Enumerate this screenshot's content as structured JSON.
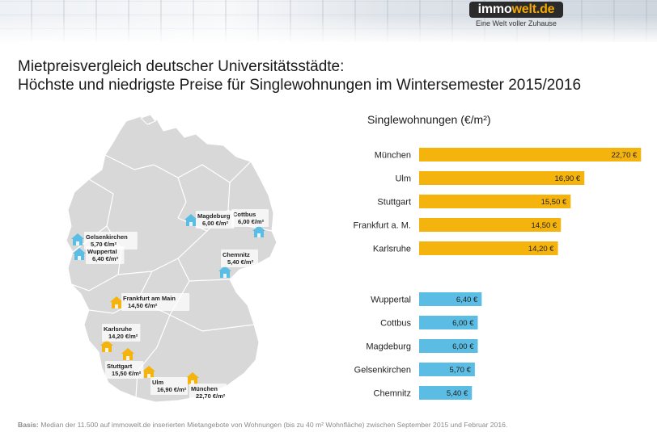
{
  "brand": {
    "logo_prefix": "immo",
    "logo_suffix": "welt.de",
    "tagline": "Eine Welt voller Zuhause",
    "accent_color": "#f5a800"
  },
  "title": {
    "line1": "Mietpreisvergleich deutscher Universitätsstädte:",
    "line2": "Höchste und niedrigste Preise für Singlewohnungen im Wintersemester 2015/2016"
  },
  "map": {
    "cities": [
      {
        "name": "München",
        "price": "22,70 €/m²",
        "tier": "high"
      },
      {
        "name": "Ulm",
        "price": "16,90 €/m²",
        "tier": "high"
      },
      {
        "name": "Stuttgart",
        "price": "15,50 €/m²",
        "tier": "high"
      },
      {
        "name": "Frankfurt am Main",
        "price": "14,50 €/m²",
        "tier": "high"
      },
      {
        "name": "Karlsruhe",
        "price": "14,20 €/m²",
        "tier": "high"
      },
      {
        "name": "Wuppertal",
        "price": "6,40 €/m²",
        "tier": "low"
      },
      {
        "name": "Cottbus",
        "price": "6,00 €/m²",
        "tier": "low"
      },
      {
        "name": "Magdeburg",
        "price": "6,00 €/m²",
        "tier": "low"
      },
      {
        "name": "Gelsenkirchen",
        "price": "5,70 €/m²",
        "tier": "low"
      },
      {
        "name": "Chemnitz",
        "price": "5,40 €/m²",
        "tier": "low"
      }
    ]
  },
  "chart_data": {
    "type": "bar",
    "orientation": "horizontal",
    "title": "Singlewohnungen (€/m²)",
    "groups": [
      {
        "name": "highest",
        "color": "#f5b30e",
        "categories": [
          "München",
          "Ulm",
          "Stuttgart",
          "Frankfurt a. M.",
          "Karlsruhe"
        ],
        "values": [
          22.7,
          16.9,
          15.5,
          14.5,
          14.2
        ],
        "labels": [
          "22,70 €",
          "16,90 €",
          "15,50 €",
          "14,50 €",
          "14,20 €"
        ]
      },
      {
        "name": "lowest",
        "color": "#5bbde4",
        "categories": [
          "Wuppertal",
          "Cottbus",
          "Magdeburg",
          "Gelsenkirchen",
          "Chemnitz"
        ],
        "values": [
          6.4,
          6.0,
          6.0,
          5.7,
          5.4
        ],
        "labels": [
          "6,40 €",
          "6,00 €",
          "6,00 €",
          "5,70 €",
          "5,40 €"
        ]
      }
    ],
    "xlim": [
      0,
      24
    ],
    "xlabel": "",
    "ylabel": ""
  },
  "footnote": {
    "label": "Basis:",
    "text": "Median der 11.500 auf immowelt.de inserierten Mietangebote von Wohnungen (bis zu 40 m² Wohnfläche) zwischen September 2015 und Februar 2016."
  }
}
